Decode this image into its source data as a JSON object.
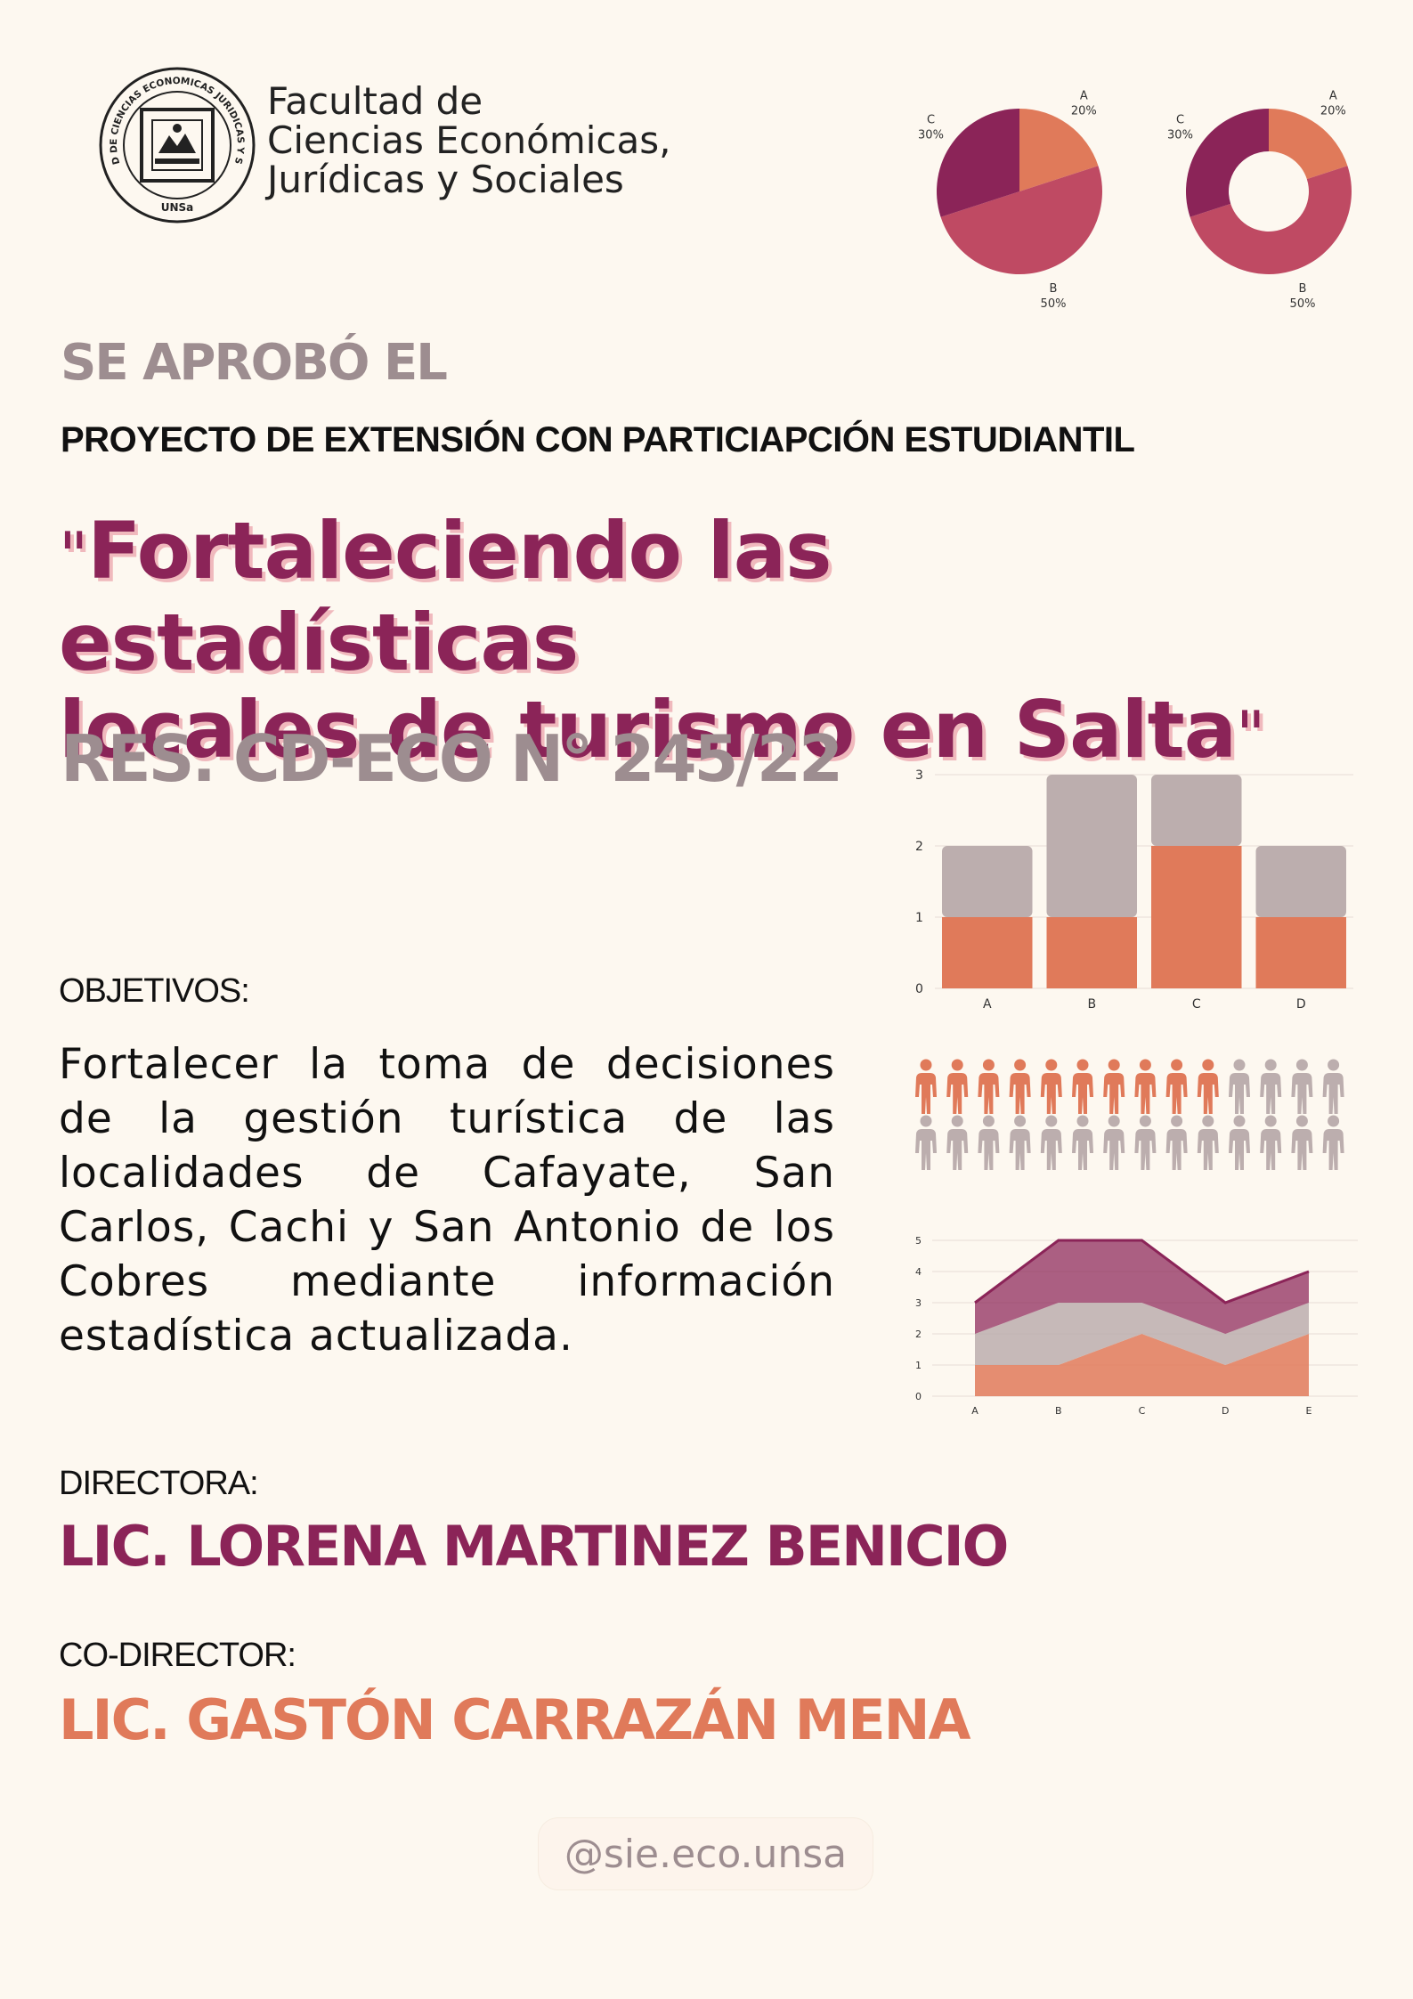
{
  "colors": {
    "plum": "#8b2458",
    "rose": "#bf4a63",
    "coral": "#e07a5a",
    "taupe": "#9d8d90",
    "light_taupe": "#bcaeae",
    "background": "#fdf8f0"
  },
  "header": {
    "logo_icon": "university-seal-icon",
    "logo_text_arc": "FACULTAD DE CIENCIAS ECONOMICAS JURIDICAS Y SOCIALES",
    "logo_text_bottom": "UNSa",
    "faculty_lines": [
      "Facultad de",
      "Ciencias Económicas,",
      "Jurídicas y Sociales"
    ]
  },
  "headline": {
    "approved": "SE APROBÓ EL",
    "project_type": "PROYECTO DE EXTENSIÓN CON PARTICIAPCIÓN ESTUDIANTIL",
    "title_open_quote": "\"",
    "title_line1": "Fortaleciendo las estadísticas",
    "title_line2": "locales de turismo en Salta",
    "title_close_quote": "\"",
    "resolution": "RES. CD-ECO N° 245/22"
  },
  "objectives": {
    "label": "OBJETIVOS:",
    "text": "Fortalecer la toma de decisiones de la gestión turística de las localidades de Cafayate, San Carlos, Cachi y San Antonio de los Cobres mediante información estadística actualizada."
  },
  "people": {
    "director_label": "DIRECTORA:",
    "director_name": "LIC. LORENA MARTINEZ BENICIO",
    "codirector_label": "CO-DIRECTOR:",
    "codirector_name": "LIC. GASTÓN CARRAZÁN MENA"
  },
  "social": {
    "handle": "@sie.eco.unsa"
  },
  "chart_data": [
    {
      "type": "pie",
      "slices": [
        {
          "label": "A",
          "value": 20,
          "value_label": "20%",
          "color": "#e07a5a"
        },
        {
          "label": "B",
          "value": 50,
          "value_label": "50%",
          "color": "#bf4a63"
        },
        {
          "label": "C",
          "value": 30,
          "value_label": "30%",
          "color": "#8b2458"
        }
      ]
    },
    {
      "type": "pie",
      "style": "donut",
      "slices": [
        {
          "label": "A",
          "value": 20,
          "value_label": "20%",
          "color": "#e07a5a"
        },
        {
          "label": "B",
          "value": 50,
          "value_label": "50%",
          "color": "#bf4a63"
        },
        {
          "label": "C",
          "value": 30,
          "value_label": "30%",
          "color": "#8b2458"
        }
      ]
    },
    {
      "type": "bar",
      "stacked": true,
      "categories": [
        "A",
        "B",
        "C",
        "D"
      ],
      "series": [
        {
          "values": [
            1,
            1,
            2,
            1
          ],
          "color": "#e07a5a"
        },
        {
          "values": [
            1,
            2,
            1,
            1
          ],
          "color": "#bcaeae"
        }
      ],
      "yticks": [
        "0",
        "1",
        "2",
        "3"
      ],
      "ylim": [
        0,
        3
      ],
      "grid": true
    },
    {
      "type": "pictograph",
      "rows": [
        {
          "filled": 10,
          "total": 14,
          "filled_color": "#e07a5a",
          "empty_color": "#bcaeae"
        },
        {
          "filled": 0,
          "total": 14,
          "filled_color": "#e07a5a",
          "empty_color": "#bcaeae"
        }
      ]
    },
    {
      "type": "area",
      "stacked": true,
      "categories": [
        "A",
        "B",
        "C",
        "D",
        "E"
      ],
      "series": [
        {
          "values": [
            1,
            1,
            2,
            1,
            2
          ],
          "color": "#e07a5a"
        },
        {
          "values": [
            1,
            2,
            1,
            1,
            1
          ],
          "color": "#bcaeae"
        },
        {
          "values": [
            1,
            2,
            2,
            1,
            1
          ],
          "color": "#8b2458"
        }
      ],
      "yticks": [
        "0",
        "1",
        "2",
        "3",
        "4",
        "5"
      ],
      "ylim": [
        0,
        5
      ],
      "grid": true
    }
  ]
}
